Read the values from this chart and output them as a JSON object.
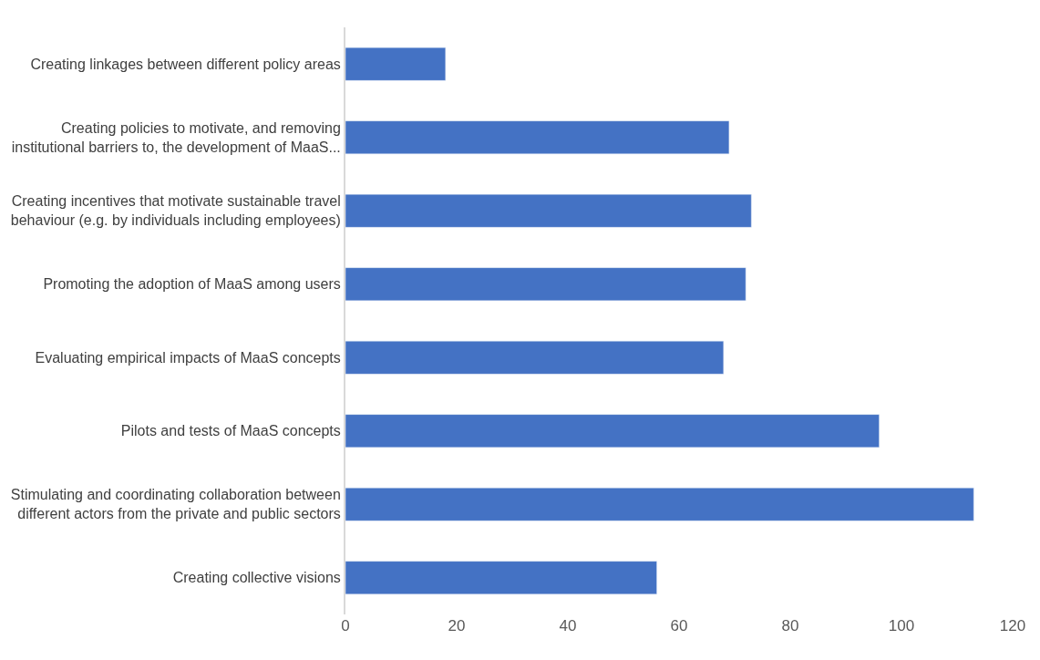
{
  "chart_data": {
    "type": "bar",
    "orientation": "horizontal",
    "categories": [
      "Creating linkages between different policy areas",
      "Creating policies to motivate, and removing institutional barriers to, the development of MaaS...",
      "Creating incentives that motivate sustainable travel behaviour (e.g. by individuals including employees)",
      "Promoting the adoption of MaaS among users",
      "Evaluating empirical impacts of MaaS concepts",
      "Pilots and tests of MaaS concepts",
      "Stimulating and coordinating collaboration between different actors from the private and public sectors",
      "Creating collective visions"
    ],
    "values": [
      18,
      69,
      73,
      72,
      68,
      96,
      113,
      56
    ],
    "color": "#4472c4",
    "xlim": [
      0,
      120
    ],
    "xticks": [
      0,
      20,
      40,
      60,
      80,
      100,
      120
    ],
    "legend": false
  }
}
